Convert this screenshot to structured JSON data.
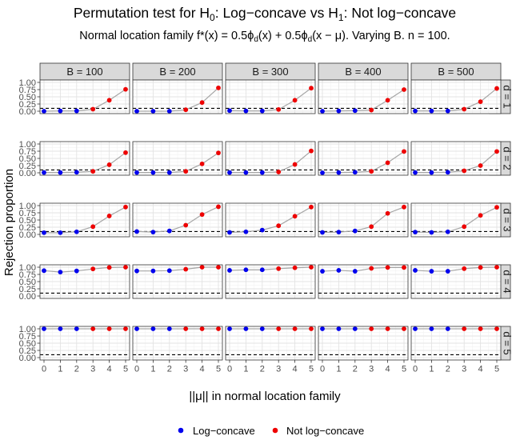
{
  "chart_data": {
    "type": "scatter",
    "title": {
      "prefix": "Permutation test for H",
      "sub0": "0",
      "mid": ": Log−concave vs H",
      "sub1": "1",
      "suffix": ": Not log−concave"
    },
    "subtitle": {
      "p1": "Normal location family f*(x) = 0.5ϕ",
      "s1": "d",
      "p2": "(x) + 0.5ϕ",
      "s2": "d",
      "p3": "(x − μ). Varying B. n = 100."
    },
    "xlabel": "||μ|| in normal location family",
    "ylabel": "Rejection proportion",
    "x": [
      0,
      1,
      2,
      3,
      4,
      5
    ],
    "x_ticks": [
      "0",
      "1",
      "2",
      "3",
      "4",
      "5"
    ],
    "y_ticks": [
      "0.00",
      "0.25",
      "0.50",
      "0.75",
      "1.00"
    ],
    "ylim": [
      0,
      1
    ],
    "threshold": 0.1,
    "col_facets": [
      "B = 100",
      "B = 200",
      "B = 300",
      "B = 400",
      "B = 500"
    ],
    "row_facets": [
      "d = 1",
      "d = 2",
      "d = 3",
      "d = 4",
      "d = 5"
    ],
    "groups": [
      {
        "name": "Log−concave",
        "color": "#0000ee",
        "x_indices": [
          0,
          1,
          2
        ]
      },
      {
        "name": "Not log−concave",
        "color": "#ee0000",
        "x_indices": [
          3,
          4,
          5
        ]
      }
    ],
    "line_color": "#a6a6a6",
    "legend": {
      "position": "bottom",
      "items": [
        "Log−concave",
        "Not log−concave"
      ]
    },
    "values": [
      [
        [
          0.0,
          0.01,
          0.01,
          0.07,
          0.38,
          0.76
        ],
        [
          0.0,
          0.0,
          0.0,
          0.05,
          0.3,
          0.81
        ],
        [
          0.02,
          0.01,
          0.01,
          0.06,
          0.38,
          0.8
        ],
        [
          0.0,
          0.01,
          0.02,
          0.04,
          0.38,
          0.75
        ],
        [
          0.01,
          0.01,
          0.01,
          0.07,
          0.33,
          0.79
        ]
      ],
      [
        [
          0.01,
          0.01,
          0.02,
          0.05,
          0.28,
          0.7
        ],
        [
          0.01,
          0.01,
          0.01,
          0.05,
          0.31,
          0.69
        ],
        [
          0.01,
          0.01,
          0.01,
          0.03,
          0.29,
          0.76
        ],
        [
          0.0,
          0.01,
          0.02,
          0.05,
          0.35,
          0.74
        ],
        [
          0.01,
          0.01,
          0.02,
          0.07,
          0.25,
          0.74
        ]
      ],
      [
        [
          0.06,
          0.06,
          0.09,
          0.27,
          0.64,
          0.95
        ],
        [
          0.1,
          0.08,
          0.12,
          0.32,
          0.69,
          0.96
        ],
        [
          0.07,
          0.09,
          0.15,
          0.3,
          0.63,
          0.95
        ],
        [
          0.07,
          0.08,
          0.12,
          0.27,
          0.73,
          0.95
        ],
        [
          0.08,
          0.07,
          0.09,
          0.27,
          0.66,
          0.94
        ]
      ],
      [
        [
          0.88,
          0.83,
          0.87,
          0.94,
          0.99,
          1.0
        ],
        [
          0.87,
          0.87,
          0.88,
          0.93,
          1.0,
          1.0
        ],
        [
          0.89,
          0.91,
          0.91,
          0.95,
          0.98,
          1.0
        ],
        [
          0.86,
          0.89,
          0.86,
          0.96,
          0.99,
          0.99
        ],
        [
          0.89,
          0.86,
          0.86,
          0.95,
          0.99,
          1.0
        ]
      ],
      [
        [
          1.0,
          1.0,
          1.0,
          1.0,
          1.0,
          1.0
        ],
        [
          1.0,
          1.0,
          1.0,
          1.0,
          1.0,
          1.0
        ],
        [
          1.0,
          1.0,
          1.0,
          1.0,
          1.0,
          1.0
        ],
        [
          1.0,
          1.0,
          1.0,
          1.0,
          1.0,
          1.0
        ],
        [
          1.0,
          1.0,
          1.0,
          1.0,
          1.0,
          1.0
        ]
      ]
    ]
  }
}
